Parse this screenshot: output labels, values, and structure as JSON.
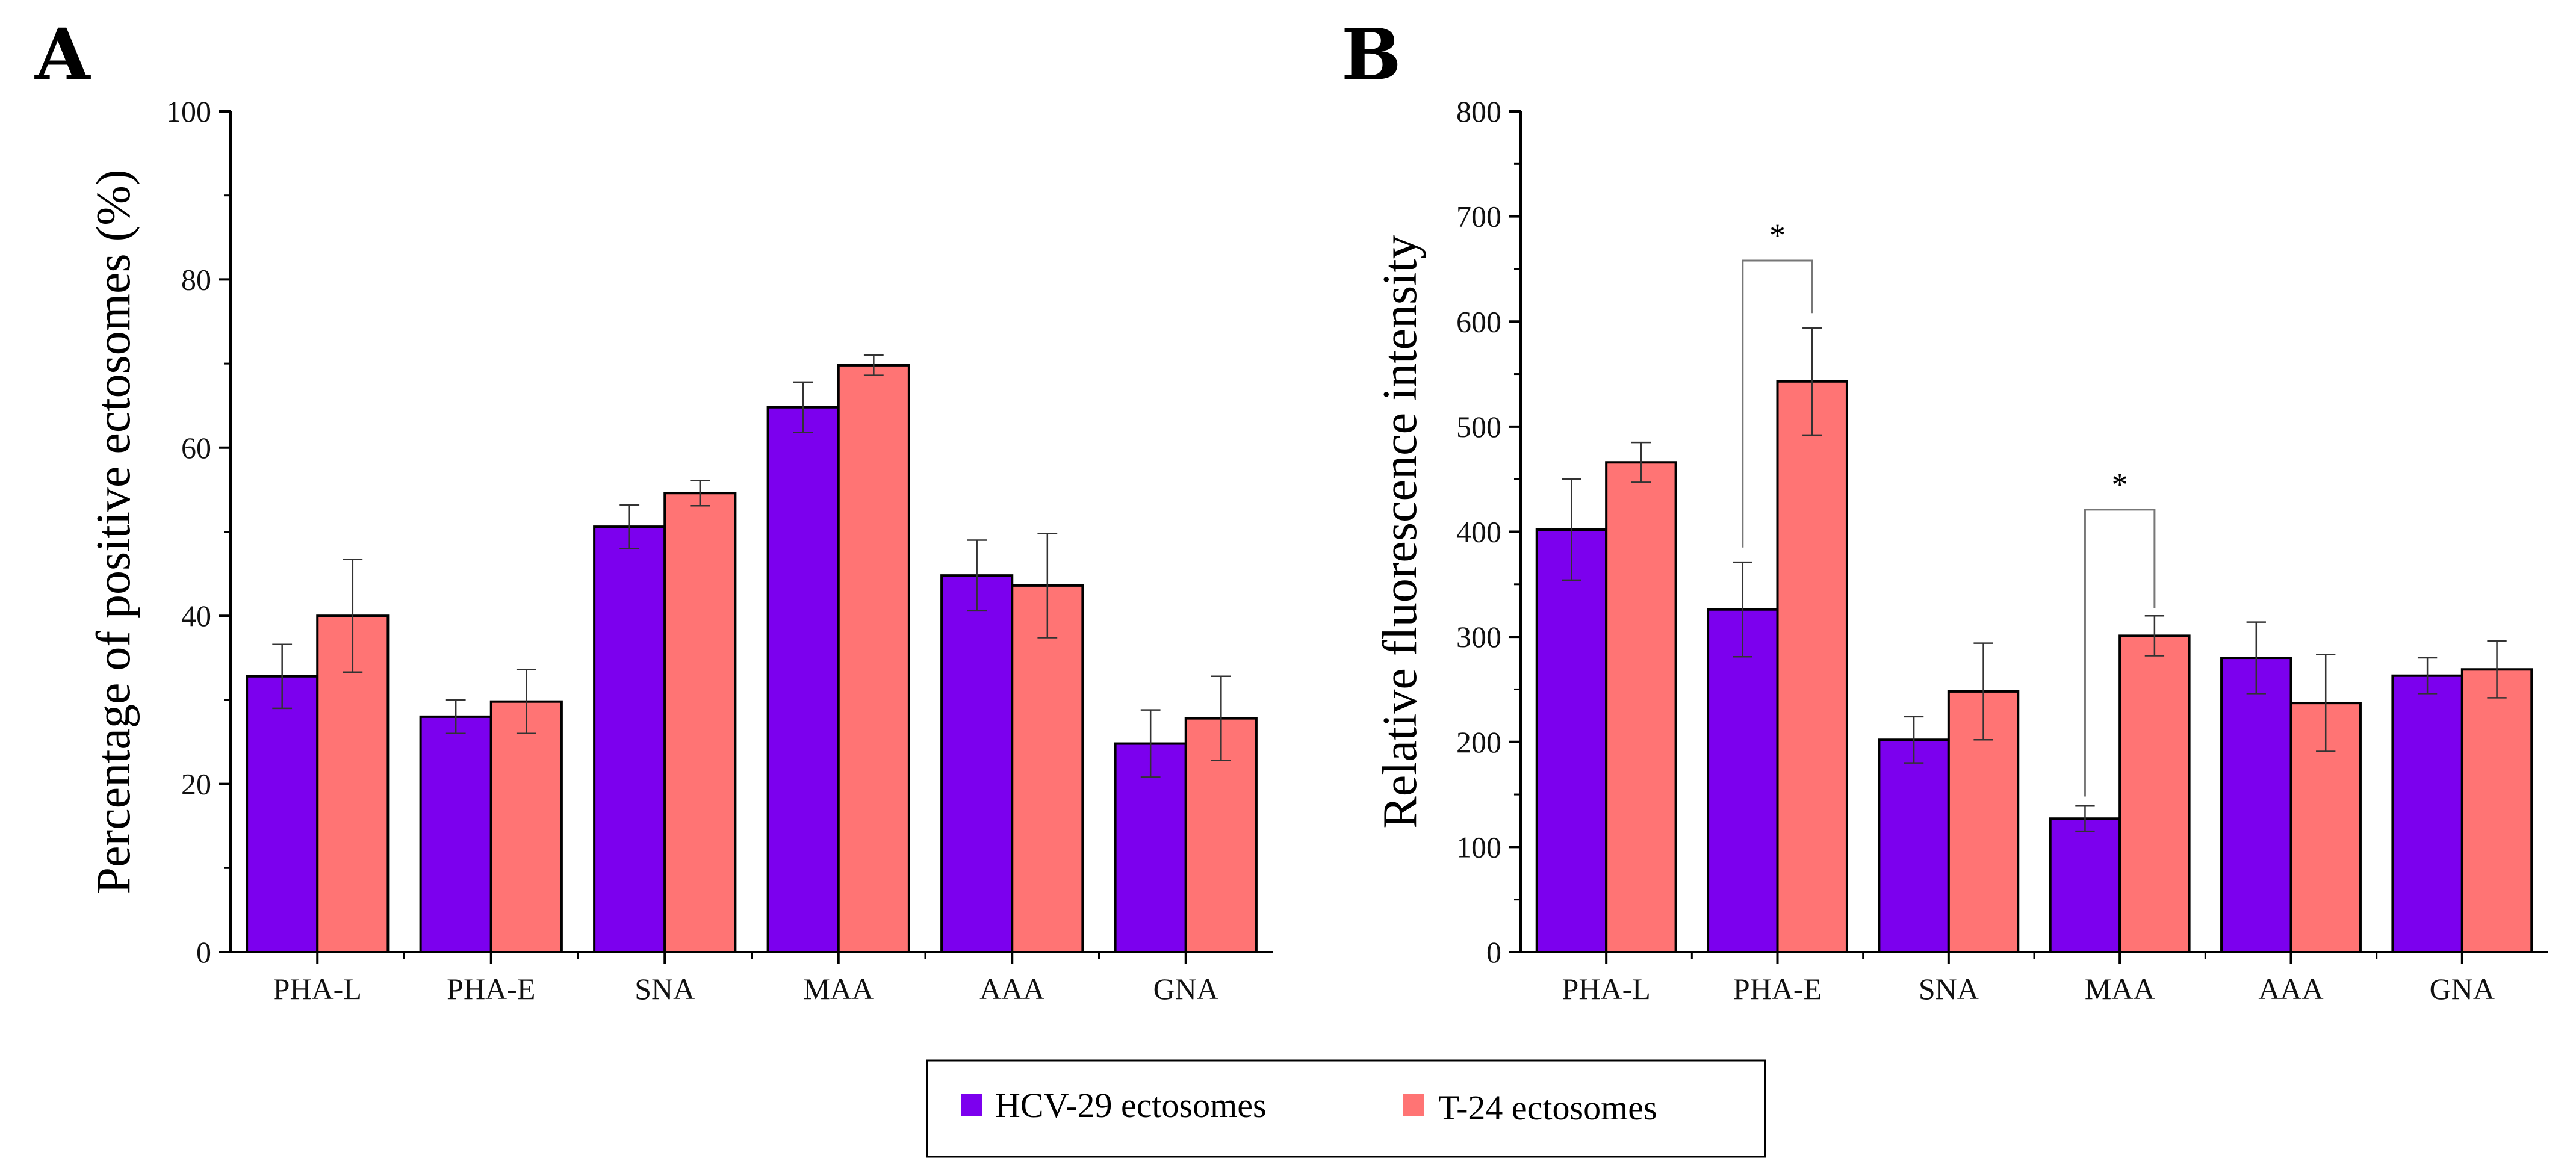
{
  "panels": {
    "a": {
      "label": "A"
    },
    "b": {
      "label": "B"
    }
  },
  "legend": {
    "items": [
      {
        "label": "HCV-29 ectosomes",
        "color": "#7c00ee"
      },
      {
        "label": "T-24 ectosomes",
        "color": "#ff7474"
      }
    ]
  },
  "chart_data": [
    {
      "type": "bar",
      "panel": "A",
      "categories": [
        "PHA-L",
        "PHA-E",
        "SNA",
        "MAA",
        "AAA",
        "GNA"
      ],
      "ylabel": "Percentage of positive ectosomes (%)",
      "xlabel": "",
      "ylim": [
        0,
        100
      ],
      "yticks": [
        0,
        20,
        40,
        60,
        80,
        100
      ],
      "series": [
        {
          "name": "HCV-29 ectosomes",
          "color": "#7c00ee",
          "values": [
            32.8,
            28.0,
            50.6,
            64.8,
            44.8,
            24.8
          ],
          "errors": [
            3.8,
            2.0,
            2.6,
            3.0,
            4.2,
            4.0
          ]
        },
        {
          "name": "T-24 ectosomes",
          "color": "#ff7474",
          "values": [
            40.0,
            29.8,
            54.6,
            69.8,
            43.6,
            27.8
          ],
          "errors": [
            6.7,
            3.8,
            1.5,
            1.2,
            6.2,
            5.0
          ]
        }
      ],
      "annotations": []
    },
    {
      "type": "bar",
      "panel": "B",
      "categories": [
        "PHA-L",
        "PHA-E",
        "SNA",
        "MAA",
        "AAA",
        "GNA"
      ],
      "ylabel": "Relative fluorescence intensity",
      "xlabel": "",
      "ylim": [
        0,
        800
      ],
      "yticks": [
        0,
        100,
        200,
        300,
        400,
        500,
        600,
        700,
        800
      ],
      "series": [
        {
          "name": "HCV-29 ectosomes",
          "color": "#7c00ee",
          "values": [
            402,
            326,
            202,
            127,
            280,
            263
          ],
          "errors": [
            48,
            45,
            22,
            12,
            34,
            17
          ]
        },
        {
          "name": "T-24 ectosomes",
          "color": "#ff7474",
          "values": [
            466,
            543,
            248,
            301,
            237,
            269
          ],
          "errors": [
            19,
            51,
            46,
            19,
            46,
            27
          ]
        }
      ],
      "annotations": [
        {
          "category": "PHA-E",
          "text": "*",
          "bracket_top": 658,
          "left_end": 385,
          "right_end": 608
        },
        {
          "category": "MAA",
          "text": "*",
          "bracket_top": 421,
          "left_end": 148,
          "right_end": 327
        }
      ]
    }
  ]
}
